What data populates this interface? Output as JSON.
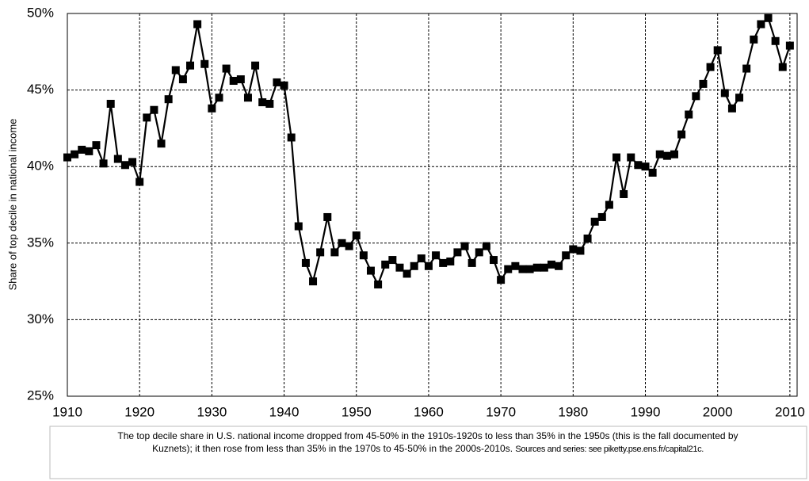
{
  "chart_data": {
    "type": "line",
    "y_label": "Share of top decile in national income",
    "x": [
      1910,
      1911,
      1912,
      1913,
      1914,
      1915,
      1916,
      1917,
      1918,
      1919,
      1920,
      1921,
      1922,
      1923,
      1924,
      1925,
      1926,
      1927,
      1928,
      1929,
      1930,
      1931,
      1932,
      1933,
      1934,
      1935,
      1936,
      1937,
      1938,
      1939,
      1940,
      1941,
      1942,
      1943,
      1944,
      1945,
      1946,
      1947,
      1948,
      1949,
      1950,
      1951,
      1952,
      1953,
      1954,
      1955,
      1956,
      1957,
      1958,
      1959,
      1960,
      1961,
      1962,
      1963,
      1964,
      1965,
      1966,
      1967,
      1968,
      1969,
      1970,
      1971,
      1972,
      1973,
      1974,
      1975,
      1976,
      1977,
      1978,
      1979,
      1980,
      1981,
      1982,
      1983,
      1984,
      1985,
      1986,
      1987,
      1988,
      1989,
      1990,
      1991,
      1992,
      1993,
      1994,
      1995,
      1996,
      1997,
      1998,
      1999,
      2000,
      2001,
      2002,
      2003,
      2004,
      2005,
      2006,
      2007,
      2008,
      2009,
      2010
    ],
    "series": [
      {
        "color": "#000000",
        "values": [
          40.6,
          40.8,
          41.1,
          41.0,
          41.4,
          40.2,
          44.1,
          40.5,
          40.1,
          40.3,
          39.0,
          43.2,
          43.7,
          41.5,
          44.4,
          46.3,
          45.7,
          46.6,
          49.3,
          46.7,
          43.8,
          44.5,
          46.4,
          45.6,
          45.7,
          44.5,
          46.6,
          44.2,
          44.1,
          45.5,
          45.3,
          41.9,
          36.1,
          33.7,
          32.5,
          34.4,
          36.7,
          34.4,
          35.0,
          34.8,
          35.5,
          34.2,
          33.2,
          32.3,
          33.6,
          33.9,
          33.4,
          33.0,
          33.5,
          34.0,
          33.5,
          34.2,
          33.7,
          33.8,
          34.4,
          34.8,
          33.7,
          34.4,
          34.8,
          33.9,
          32.6,
          33.3,
          33.5,
          33.3,
          33.3,
          33.4,
          33.4,
          33.6,
          33.5,
          34.2,
          34.6,
          34.5,
          35.3,
          36.4,
          36.7,
          37.5,
          40.6,
          38.2,
          40.6,
          40.1,
          40.0,
          39.6,
          40.8,
          40.7,
          40.8,
          42.1,
          43.4,
          44.6,
          45.4,
          46.5,
          47.6,
          44.8,
          43.8,
          44.5,
          46.4,
          48.3,
          49.3,
          49.7,
          48.2,
          46.5,
          47.9
        ]
      }
    ],
    "xlim": [
      1910,
      2011
    ],
    "xticks": [
      1910,
      1920,
      1930,
      1940,
      1950,
      1960,
      1970,
      1980,
      1990,
      2000,
      2010
    ],
    "ylim": [
      25,
      50
    ],
    "yticks": [
      {
        "value": 25,
        "label": "25%"
      },
      {
        "value": 30,
        "label": "30%"
      },
      {
        "value": 35,
        "label": "35%"
      },
      {
        "value": 40,
        "label": "40%"
      },
      {
        "value": 45,
        "label": "45%"
      },
      {
        "value": 50,
        "label": "50%"
      }
    ],
    "grid": true,
    "caption": [
      "The top decile share in U.S. national income dropped from 45-50% in the 1910s-1920s to less than 35% in the 1950s (this is the fall documented by",
      "Kuznets); it then rose from less than 35% in the 1970s to 45-50% in the 2000s-2010s.",
      "Sources and series: see piketty.pse.ens.fr/capital21c."
    ]
  }
}
